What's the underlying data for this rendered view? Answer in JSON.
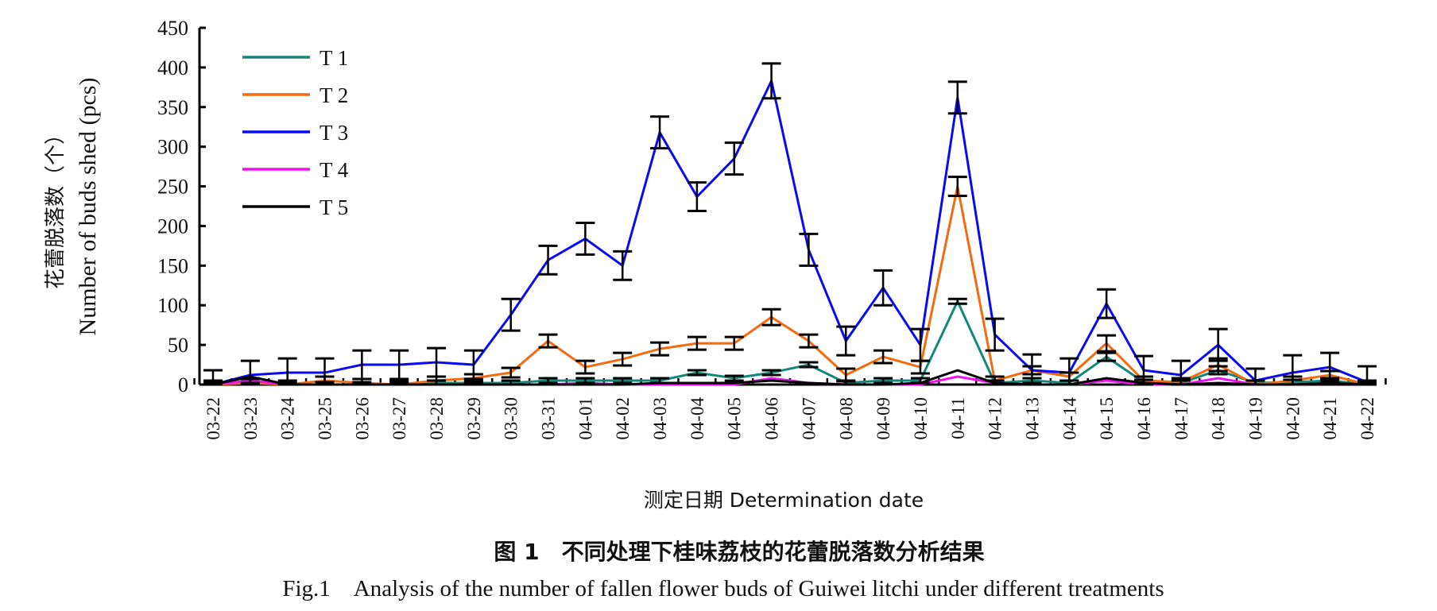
{
  "chart_data": {
    "type": "line",
    "title_cn": "图 1　不同处理下桂味荔枝的花蕾脱落数分析结果",
    "title_en": "Fig.1　Analysis of the number of fallen flower buds of Guiwei litchi under different treatments",
    "xlabel": "测定日期 Determination date",
    "ylabel_cn": "花蕾脱落数（个）",
    "ylabel_en": "Number of buds shed (pcs)",
    "ylim": [
      0,
      450
    ],
    "yticks": [
      0,
      50,
      100,
      150,
      200,
      250,
      300,
      350,
      400,
      450
    ],
    "legend_position": "top-left",
    "categories": [
      "03-22",
      "03-23",
      "03-24",
      "03-25",
      "03-26",
      "03-27",
      "03-28",
      "03-29",
      "03-30",
      "03-31",
      "04-01",
      "04-02",
      "04-03",
      "04-04",
      "04-05",
      "04-06",
      "04-07",
      "04-08",
      "04-09",
      "04-10",
      "04-11",
      "04-12",
      "04-13",
      "04-14",
      "04-15",
      "04-16",
      "04-17",
      "04-18",
      "04-19",
      "04-20",
      "04-21",
      "04-22"
    ],
    "series": [
      {
        "name": "T 1",
        "color": "#12877a",
        "values": [
          0,
          5,
          0,
          0,
          0,
          0,
          2,
          2,
          2,
          5,
          5,
          5,
          5,
          15,
          8,
          15,
          25,
          2,
          5,
          5,
          105,
          2,
          5,
          2,
          35,
          3,
          2,
          18,
          2,
          3,
          5,
          0
        ],
        "errors": [
          3,
          3,
          3,
          3,
          3,
          3,
          3,
          3,
          3,
          3,
          3,
          3,
          3,
          3,
          3,
          3,
          3,
          3,
          3,
          3,
          3,
          3,
          3,
          3,
          5,
          3,
          3,
          5,
          3,
          3,
          3,
          3
        ]
      },
      {
        "name": "T 2",
        "color": "#f26b0f",
        "values": [
          0,
          2,
          0,
          5,
          2,
          0,
          5,
          8,
          15,
          55,
          22,
          32,
          45,
          52,
          52,
          85,
          55,
          12,
          35,
          22,
          250,
          5,
          18,
          10,
          52,
          5,
          3,
          25,
          0,
          5,
          12,
          0
        ],
        "errors": [
          5,
          5,
          5,
          5,
          5,
          5,
          5,
          5,
          6,
          8,
          8,
          8,
          8,
          8,
          8,
          10,
          8,
          8,
          8,
          8,
          12,
          5,
          5,
          5,
          10,
          5,
          5,
          8,
          5,
          5,
          5,
          5
        ]
      },
      {
        "name": "T 3",
        "color": "#0a0af0",
        "values": [
          0,
          12,
          15,
          15,
          25,
          25,
          28,
          25,
          88,
          157,
          184,
          150,
          318,
          237,
          285,
          383,
          170,
          55,
          122,
          50,
          362,
          63,
          18,
          15,
          102,
          18,
          12,
          50,
          5,
          15,
          22,
          3
        ],
        "errors": [
          18,
          18,
          18,
          18,
          18,
          18,
          18,
          18,
          20,
          18,
          20,
          18,
          20,
          18,
          20,
          22,
          20,
          18,
          22,
          20,
          20,
          20,
          20,
          18,
          18,
          18,
          18,
          20,
          15,
          22,
          18,
          20
        ]
      },
      {
        "name": "T 4",
        "color": "#f010f0",
        "values": [
          0,
          5,
          0,
          0,
          0,
          0,
          0,
          0,
          0,
          0,
          2,
          0,
          0,
          0,
          0,
          8,
          2,
          0,
          0,
          0,
          10,
          2,
          0,
          0,
          5,
          0,
          0,
          8,
          0,
          0,
          2,
          0
        ],
        "errors": []
      },
      {
        "name": "T 5",
        "color": "#000000",
        "values": [
          0,
          10,
          0,
          0,
          0,
          0,
          0,
          0,
          0,
          0,
          0,
          0,
          2,
          2,
          2,
          5,
          2,
          0,
          0,
          2,
          18,
          2,
          0,
          0,
          8,
          2,
          0,
          2,
          0,
          0,
          2,
          0
        ],
        "errors": []
      }
    ]
  }
}
